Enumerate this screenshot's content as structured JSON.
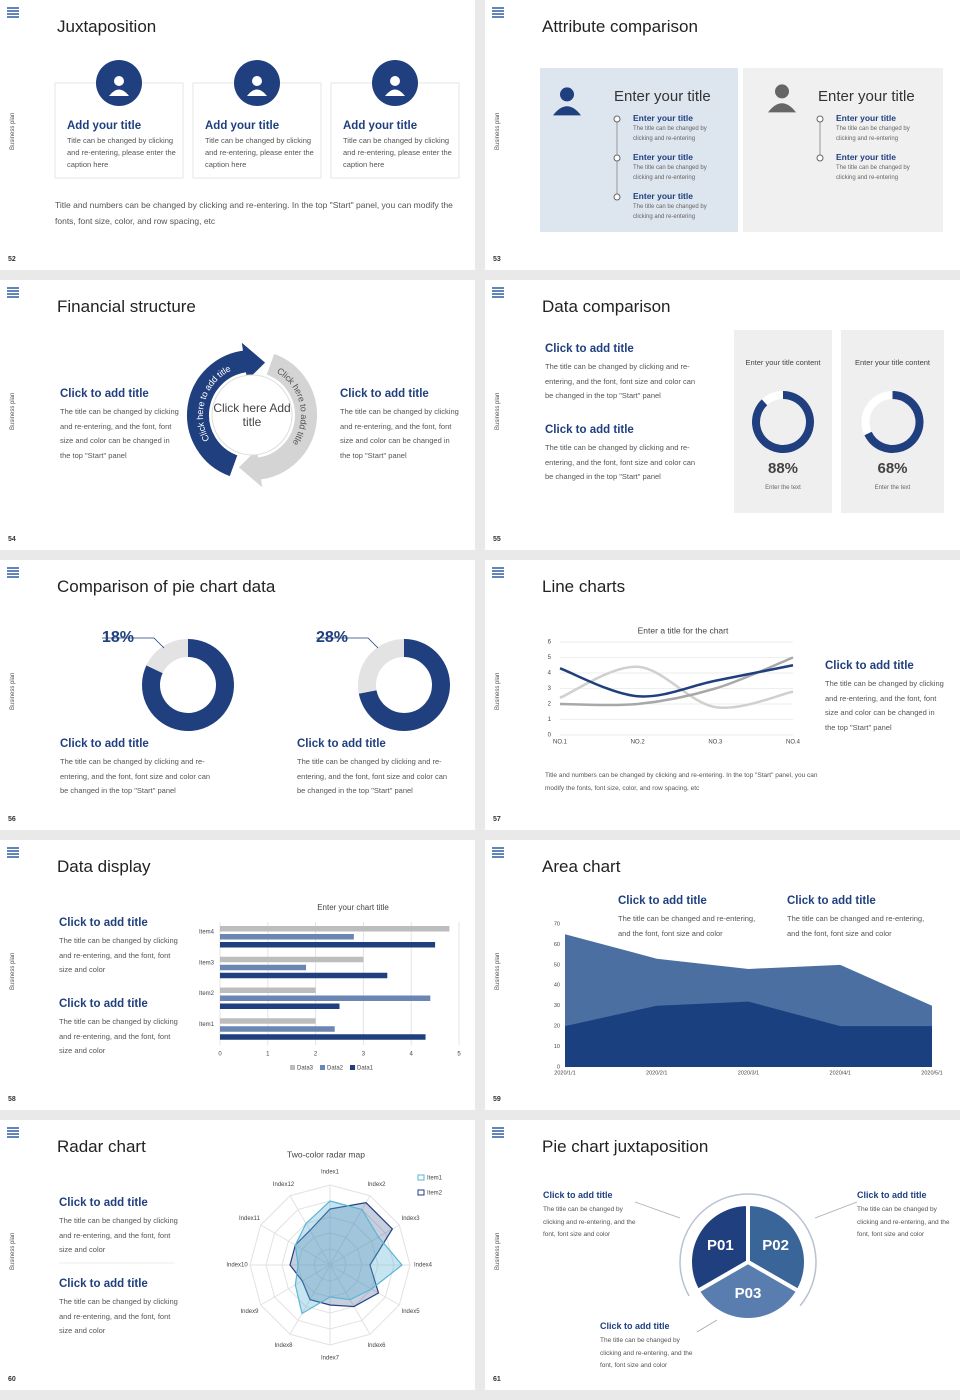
{
  "side_label": "Business plan",
  "slides": [
    {
      "number": "52",
      "title": "Juxtaposition",
      "cards": [
        {
          "title": "Add your title",
          "text": "Title can be changed by clicking and re-entering, please enter the caption here"
        },
        {
          "title": "Add your title",
          "text": "Title can be changed by clicking and re-entering, please enter the caption here"
        },
        {
          "title": "Add your title",
          "text": "Title can be changed by clicking and re-entering, please enter the caption here"
        }
      ],
      "note": "Title and numbers can be changed by clicking and re-entering. In the top \"Start\" panel, you can modify the fonts, font size, color, and row spacing, etc"
    },
    {
      "number": "53",
      "title": "Attribute comparison",
      "panels": [
        {
          "title": "Enter your title",
          "items": [
            {
              "title": "Enter your title",
              "text": "The title can be changed by clicking and re-entering"
            },
            {
              "title": "Enter your title",
              "text": "The title can be changed by clicking and re-entering"
            },
            {
              "title": "Enter your title",
              "text": "The title can be changed by clicking and re-entering"
            }
          ]
        },
        {
          "title": "Enter your title",
          "items": [
            {
              "title": "Enter your title",
              "text": "The title can be changed by clicking and re-entering"
            },
            {
              "title": "Enter your title",
              "text": "The title can be changed by clicking and re-entering"
            }
          ]
        }
      ]
    },
    {
      "number": "54",
      "title": "Financial structure",
      "blocks": [
        {
          "title": "Click to add title",
          "text": "The title can be changed by clicking and re-entering, and the font, font size and color can be changed in the top \"Start\" panel"
        },
        {
          "title": "Click to add title",
          "text": "The title can be changed by clicking and re-entering, and the font, font size and color can be changed in the top \"Start\" panel"
        }
      ],
      "center": "Click here Add title",
      "arrows": [
        "Click here to add title",
        "Click here to add title"
      ]
    },
    {
      "number": "55",
      "title": "Data comparison",
      "blocks": [
        {
          "title": "Click to add title",
          "text": "The title can be changed by clicking and re-entering, and the font, font size and color can be changed in the top \"Start\" panel"
        },
        {
          "title": "Click to add title",
          "text": "The title can be changed by clicking and re-entering, and the font, font size and color can be changed in the top \"Start\" panel"
        }
      ],
      "charts": [
        {
          "type": "donut",
          "title": "Enter your title content",
          "value": 88,
          "value_label": "88%",
          "caption": "Enter the text",
          "color": "#1f3f7f"
        },
        {
          "type": "donut",
          "title": "Enter your title content",
          "value": 68,
          "value_label": "68%",
          "caption": "Enter the text",
          "color": "#1f3f7f"
        }
      ]
    },
    {
      "number": "56",
      "title": "Comparison of pie chart data",
      "charts": [
        {
          "type": "pie",
          "value": 18,
          "value_label": "18%",
          "color": "#e3e3e3",
          "rest_color": "#1f3f7f"
        },
        {
          "type": "pie",
          "value": 28,
          "value_label": "28%",
          "color": "#e3e3e3",
          "rest_color": "#1f3f7f"
        }
      ],
      "blocks": [
        {
          "title": "Click to add title",
          "text": "The title can be changed by clicking and re-entering, and the font, font size and color can be changed in the top \"Start\" panel"
        },
        {
          "title": "Click to add title",
          "text": "The title can be changed by clicking and re-entering, and the font, font size and color can be changed in the top \"Start\" panel"
        }
      ]
    },
    {
      "number": "57",
      "title": "Line charts",
      "chart": {
        "type": "line",
        "title": "Enter a title for the chart",
        "categories": [
          "NO.1",
          "NO.2",
          "NO.3",
          "NO.4"
        ],
        "series": [
          {
            "color": "#d0d0d0",
            "values": [
              2.4,
              4.4,
              1.8,
              2.8
            ]
          },
          {
            "color": "#a8a8a8",
            "values": [
              2.0,
              2.0,
              3.0,
              5.0
            ]
          },
          {
            "color": "#1f3f7f",
            "values": [
              4.3,
              2.5,
              3.5,
              4.5
            ]
          }
        ],
        "ylim": [
          0,
          6
        ],
        "yticks": [
          0,
          1,
          2,
          3,
          4,
          5,
          6
        ],
        "grid": true
      },
      "block": {
        "title": "Click to add title",
        "text": "The title can be changed by clicking and re-entering, and the font, font size and color can be changed in the top \"Start\" panel"
      },
      "note": "Title and numbers can be changed by clicking and re-entering. In the top \"Start\" panel, you can modify the fonts, font size, color, and row spacing, etc"
    },
    {
      "number": "58",
      "title": "Data display",
      "blocks": [
        {
          "title": "Click to add title",
          "text": "The title can be changed by clicking and re-entering, and the font, font size and color"
        },
        {
          "title": "Click to add title",
          "text": "The title can be changed by clicking and re-entering, and the font, font size and color"
        }
      ],
      "chart": {
        "type": "bar",
        "orientation": "horizontal",
        "title": "Enter your chart title",
        "categories": [
          "Item1",
          "Item2",
          "Item3",
          "Item4"
        ],
        "series": [
          {
            "name": "Data3",
            "color": "#bdbdbd",
            "values": [
              2.0,
              2.0,
              3.0,
              4.8
            ]
          },
          {
            "name": "Data2",
            "color": "#6b86b3",
            "values": [
              2.4,
              4.4,
              1.8,
              2.8
            ]
          },
          {
            "name": "Data1",
            "color": "#1f3f7f",
            "values": [
              4.3,
              2.5,
              3.5,
              4.5
            ]
          }
        ],
        "xlim": [
          0,
          5
        ],
        "xticks": [
          0,
          1,
          2,
          3,
          4,
          5
        ],
        "grid": true,
        "legend": "bottom"
      }
    },
    {
      "number": "59",
      "title": "Area chart",
      "blocks": [
        {
          "title": "Click to add title",
          "text": "The title can be changed and re-entering, and the font, font size and color"
        },
        {
          "title": "Click to add title",
          "text": "The title can be changed and re-entering, and the font, font size and color"
        }
      ],
      "chart": {
        "type": "area",
        "x": [
          "2020/1/1",
          "2020/2/1",
          "2020/3/1",
          "2020/4/1",
          "2020/5/1"
        ],
        "series": [
          {
            "color": "#4a6fa0",
            "values": [
              65,
              53,
              48,
              50,
              30
            ]
          },
          {
            "color": "#1a4080",
            "values": [
              20,
              30,
              32,
              20,
              20
            ]
          }
        ],
        "ylim": [
          0,
          70
        ],
        "yticks": [
          0,
          10,
          20,
          30,
          40,
          50,
          60,
          70
        ]
      }
    },
    {
      "number": "60",
      "title": "Radar chart",
      "blocks": [
        {
          "title": "Click to add title",
          "text": "The title can be changed by clicking and re-entering, and the font, font size and color"
        },
        {
          "title": "Click to add title",
          "text": "The title can be changed by clicking and re-entering, and the font, font size and color"
        }
      ],
      "chart": {
        "type": "radar",
        "title": "Two-color radar map",
        "categories": [
          "Index1",
          "Index2",
          "Index3",
          "Index4",
          "Index5",
          "Index6",
          "Index7",
          "Index8",
          "Index9",
          "Index10",
          "Index11",
          "Index12"
        ],
        "series": [
          {
            "name": "Item1",
            "color": "#5bb5d5",
            "values": [
              8,
              8,
              7,
              9,
              6,
              5,
              4,
              7,
              5,
              4,
              5,
              6
            ]
          },
          {
            "name": "Item2",
            "color": "#1f3f7f",
            "values": [
              7,
              9,
              9,
              5,
              7,
              6,
              5,
              5,
              4,
              5,
              5,
              5
            ]
          }
        ],
        "rlim": [
          0,
          10
        ],
        "legend": "top-right"
      }
    },
    {
      "number": "61",
      "title": "Pie chart juxtaposition",
      "segments": [
        "P01",
        "P02",
        "P03"
      ],
      "blocks": [
        {
          "title": "Click to add title",
          "text": "The title can be changed by clicking and re-entering, and the font, font size and color"
        },
        {
          "title": "Click to add title",
          "text": "The title can be changed by clicking and re-entering, and the font, font size and color"
        },
        {
          "title": "Click to add title",
          "text": "The title can be changed by clicking and re-entering, and the font, font size and color"
        }
      ]
    }
  ]
}
